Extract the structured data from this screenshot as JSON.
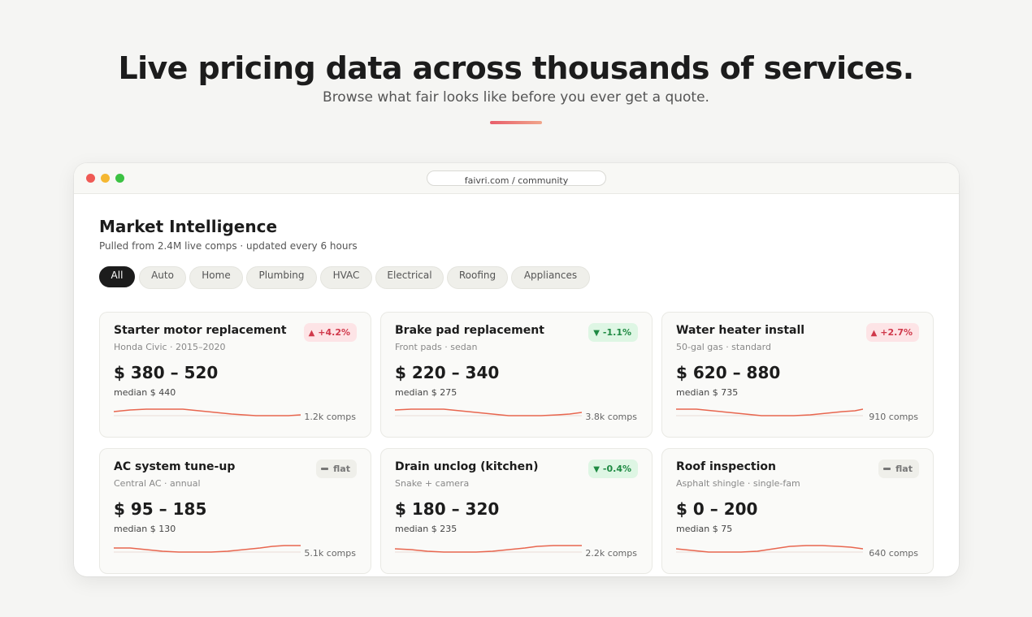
{
  "hero": {
    "title": "Live pricing data across thousands of services.",
    "subtitle": "Browse what fair looks like before you ever get a quote.",
    "accent_colors": [
      "#e85d6a",
      "#f0a58a"
    ]
  },
  "window": {
    "url": "faivri.com / community",
    "traffic_lights": [
      "#ef5a55",
      "#f5b731",
      "#3cc243"
    ]
  },
  "main": {
    "title": "Market Intelligence",
    "subtitle": "Pulled from 2.4M live comps · updated every 6 hours",
    "filters": [
      {
        "label": "All",
        "active": true
      },
      {
        "label": "Auto",
        "active": false
      },
      {
        "label": "Home",
        "active": false
      },
      {
        "label": "Plumbing",
        "active": false
      },
      {
        "label": "HVAC",
        "active": false
      },
      {
        "label": "Electrical",
        "active": false
      },
      {
        "label": "Roofing",
        "active": false
      },
      {
        "label": "Appliances",
        "active": false
      }
    ],
    "cards": [
      {
        "title": "Starter motor replacement",
        "subtitle": "Honda Civic · 2015–2020",
        "price": "$ 380 – 520",
        "median": "median $ 440",
        "comps": "1.2k comps",
        "trend": "up",
        "change": "+4.2%"
      },
      {
        "title": "Brake pad replacement",
        "subtitle": "Front pads · sedan",
        "price": "$ 220 – 340",
        "median": "median $ 275",
        "comps": "3.8k comps",
        "trend": "down",
        "change": "-1.1%"
      },
      {
        "title": "Water heater install",
        "subtitle": "50-gal gas · standard",
        "price": "$ 620 – 880",
        "median": "median $ 735",
        "comps": "910 comps",
        "trend": "up",
        "change": "+2.7%"
      },
      {
        "title": "AC system tune-up",
        "subtitle": "Central AC · annual",
        "price": "$ 95 – 185",
        "median": "median $ 130",
        "comps": "5.1k comps",
        "trend": "flat",
        "change": "flat"
      },
      {
        "title": "Drain unclog (kitchen)",
        "subtitle": "Snake + camera",
        "price": "$ 180 – 320",
        "median": "median $ 235",
        "comps": "2.2k comps",
        "trend": "down",
        "change": "-0.4%"
      },
      {
        "title": "Roof inspection",
        "subtitle": "Asphalt shingle · single-fam",
        "price": "$ 0 – 200",
        "median": "median $ 75",
        "comps": "640 comps",
        "trend": "flat",
        "change": "flat"
      }
    ],
    "spark_color": "#e8664f",
    "trend_colors": {
      "up": "#d0384a",
      "down": "#1f8a43",
      "flat": "#777777"
    }
  }
}
